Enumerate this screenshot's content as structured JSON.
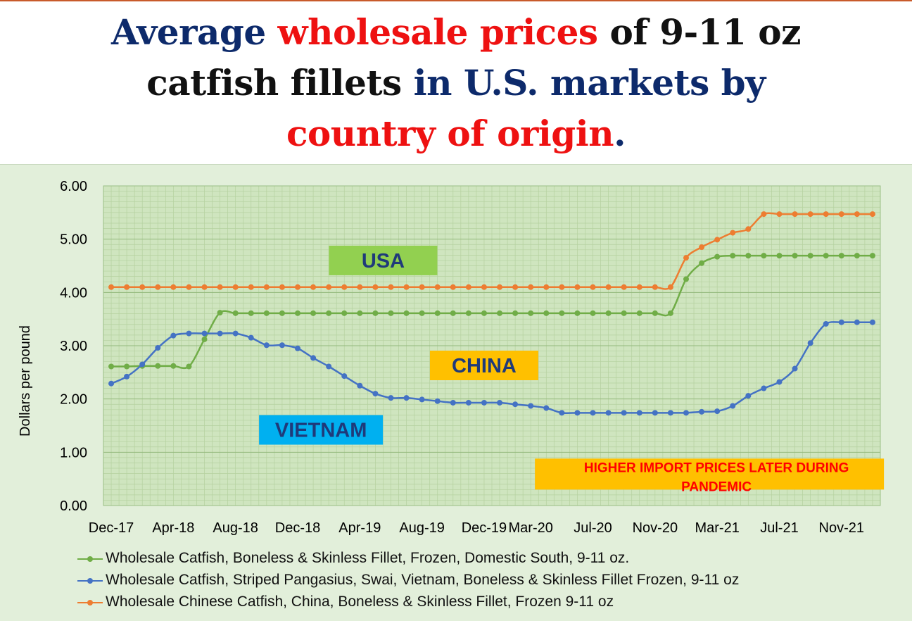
{
  "title": {
    "parts": [
      {
        "text": "Average ",
        "color": "#0d2a6b"
      },
      {
        "text": "wholesale prices",
        "color": "#ee1111"
      },
      {
        "text": " of 9-11 oz",
        "color": "#111111"
      },
      {
        "text": "catfish fillets",
        "color": "#111111"
      },
      {
        "text": " in U.S. markets by",
        "color": "#0d2a6b"
      },
      {
        "text": "country of origin",
        "color": "#ee1111"
      },
      {
        "text": ".",
        "color": "#0d2a6b"
      }
    ]
  },
  "chart_data": {
    "type": "line",
    "ylabel": "Dollars per pound",
    "ylim": [
      0,
      6
    ],
    "yticks": [
      "0.00",
      "1.00",
      "2.00",
      "3.00",
      "4.00",
      "5.00",
      "6.00"
    ],
    "grid": true,
    "legend_position": "bottom",
    "x": [
      "Dec-17",
      "Jan-18",
      "Feb-18",
      "Mar-18",
      "Apr-18",
      "May-18",
      "Jun-18",
      "Jul-18",
      "Aug-18",
      "Sep-18",
      "Oct-18",
      "Nov-18",
      "Dec-18",
      "Jan-19",
      "Feb-19",
      "Mar-19",
      "Apr-19",
      "May-19",
      "Jun-19",
      "Jul-19",
      "Aug-19",
      "Sep-19",
      "Oct-19",
      "Nov-19",
      "Dec-19",
      "Jan-20",
      "Feb-20",
      "Mar-20",
      "Apr-20",
      "May-20",
      "Jun-20",
      "Jul-20",
      "Aug-20",
      "Sep-20",
      "Oct-20",
      "Nov-20",
      "Dec-20",
      "Jan-21",
      "Feb-21",
      "Mar-21",
      "Apr-21",
      "May-21",
      "Jun-21",
      "Jul-21",
      "Aug-21",
      "Sep-21",
      "Oct-21",
      "Nov-21",
      "Dec-21",
      "Jan-22"
    ],
    "xtick_labels": [
      "Dec-17",
      "Apr-18",
      "Aug-18",
      "Dec-18",
      "Apr-19",
      "Aug-19",
      "Dec-19",
      "Mar-20",
      "Jul-20",
      "Nov-20",
      "Mar-21",
      "Jul-21",
      "Nov-21"
    ],
    "series": [
      {
        "name": "Wholesale Catfish, Boneless & Skinless Fillet, Frozen, Domestic South, 9-11 oz.",
        "color": "#70ad47",
        "values": [
          2.61,
          2.61,
          2.62,
          2.62,
          2.62,
          2.61,
          3.12,
          3.62,
          3.61,
          3.61,
          3.61,
          3.61,
          3.61,
          3.61,
          3.61,
          3.61,
          3.61,
          3.61,
          3.61,
          3.61,
          3.61,
          3.61,
          3.61,
          3.61,
          3.61,
          3.61,
          3.61,
          3.61,
          3.61,
          3.61,
          3.61,
          3.61,
          3.61,
          3.61,
          3.61,
          3.61,
          3.61,
          4.25,
          4.55,
          4.67,
          4.69,
          4.69,
          4.69,
          4.69,
          4.69,
          4.69,
          4.69,
          4.69,
          4.69,
          4.69
        ]
      },
      {
        "name": "Wholesale Catfish, Striped Pangasius, Swai, Vietnam, Boneless & Skinless Fillet Frozen, 9-11 oz",
        "color": "#4472c4",
        "values": [
          2.29,
          2.42,
          2.65,
          2.96,
          3.19,
          3.23,
          3.23,
          3.23,
          3.23,
          3.15,
          3.01,
          3.01,
          2.95,
          2.77,
          2.61,
          2.43,
          2.25,
          2.1,
          2.02,
          2.02,
          1.99,
          1.96,
          1.93,
          1.93,
          1.93,
          1.93,
          1.9,
          1.87,
          1.83,
          1.74,
          1.74,
          1.74,
          1.74,
          1.74,
          1.74,
          1.74,
          1.74,
          1.74,
          1.76,
          1.77,
          1.87,
          2.06,
          2.2,
          2.32,
          2.57,
          3.05,
          3.41,
          3.44,
          3.44,
          3.44
        ]
      },
      {
        "name": "Wholesale Chinese Catfish, China, Boneless & Skinless Fillet, Frozen 9-11 oz",
        "color": "#ed7d31",
        "values": [
          4.1,
          4.1,
          4.1,
          4.1,
          4.1,
          4.1,
          4.1,
          4.1,
          4.1,
          4.1,
          4.1,
          4.1,
          4.1,
          4.1,
          4.1,
          4.1,
          4.1,
          4.1,
          4.1,
          4.1,
          4.1,
          4.1,
          4.1,
          4.1,
          4.1,
          4.1,
          4.1,
          4.1,
          4.1,
          4.1,
          4.1,
          4.1,
          4.1,
          4.1,
          4.1,
          4.1,
          4.1,
          4.65,
          4.85,
          4.99,
          5.12,
          5.19,
          5.47,
          5.47,
          5.47,
          5.47,
          5.47,
          5.47,
          5.47,
          5.47
        ]
      }
    ],
    "annotations": [
      {
        "text": "USA",
        "bg": "#92d050",
        "color": "#1f3a7a",
        "x_index": 17.5,
        "y": 4.6
      },
      {
        "text": "CHINA",
        "bg": "#ffc000",
        "color": "#1f3a7a",
        "x_index": 24,
        "y": 2.63
      },
      {
        "text": "VIETNAM",
        "bg": "#00b0f0",
        "color": "#1f3a7a",
        "x_index": 13.5,
        "y": 1.42
      },
      {
        "text": "HIGHER IMPORT PRICES LATER DURING PANDEMIC",
        "bg": "#ffc000",
        "color": "#ff0000",
        "x_index": 38.5,
        "y": 0.59
      }
    ]
  }
}
